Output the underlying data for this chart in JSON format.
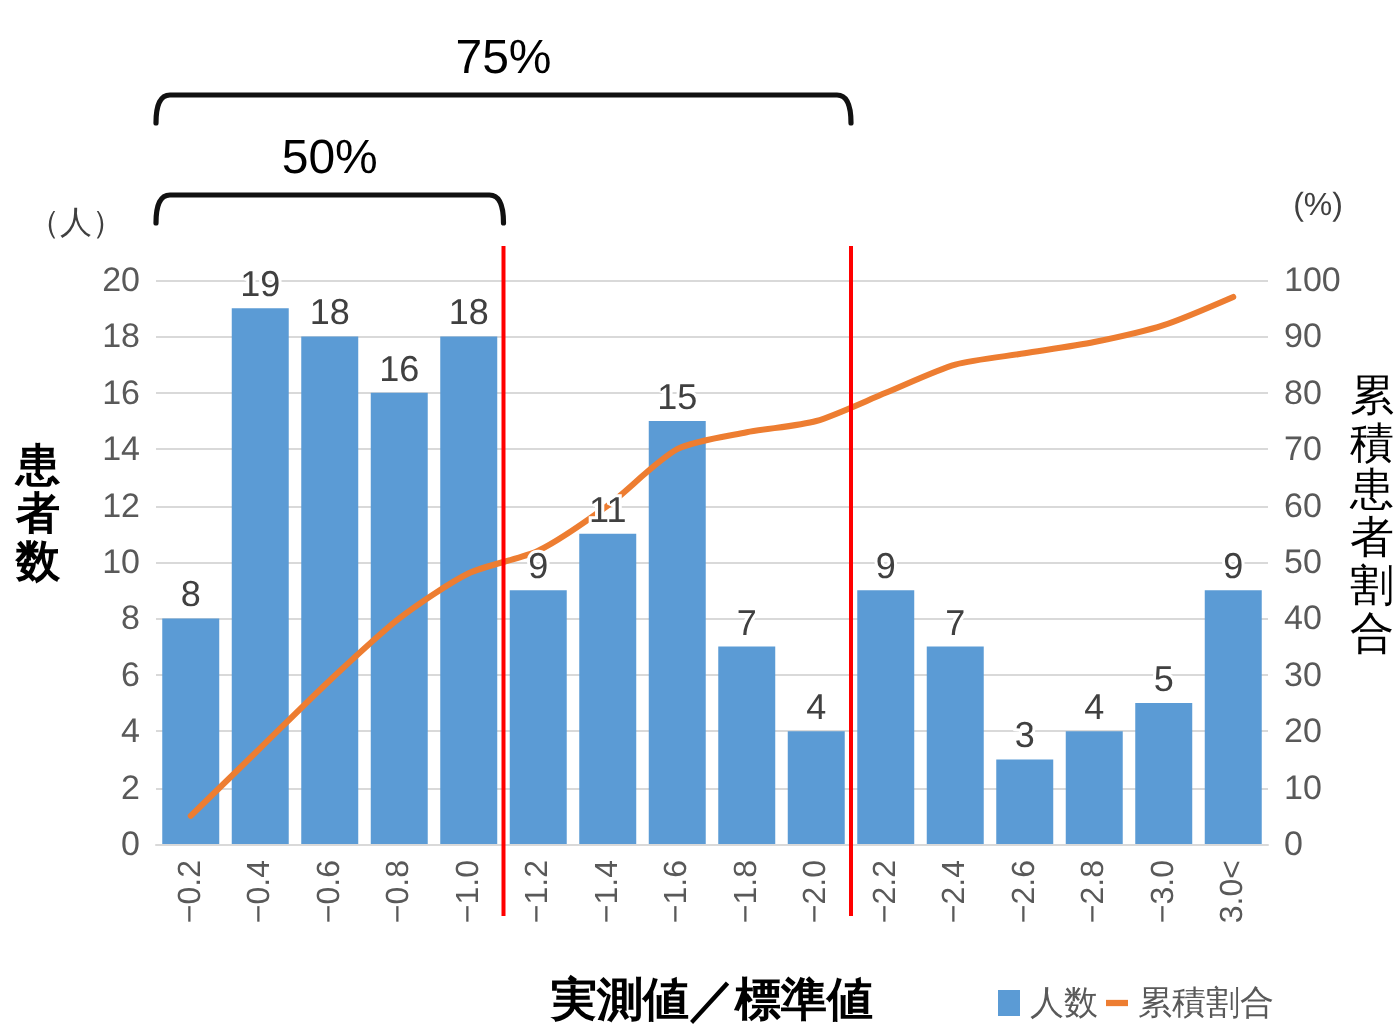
{
  "chart_data": {
    "type": "bar",
    "xlabel": "実測値／標準値",
    "ylabel": "患者数",
    "y2label": "累積患者割合",
    "categories": [
      "−0.2",
      "−0.4",
      "−0.6",
      "−0.8",
      "−1.0",
      "−1.2",
      "−1.4",
      "−1.6",
      "−1.8",
      "−2.0",
      "−2.2",
      "−2.4",
      "−2.6",
      "−2.8",
      "−3.0",
      "3.0<"
    ],
    "series": [
      {
        "name": "人数",
        "color": "#5b9bd5",
        "values": [
          8,
          19,
          18,
          16,
          18,
          9,
          11,
          15,
          7,
          4,
          9,
          7,
          3,
          4,
          5,
          9
        ],
        "value_labels": [
          "8",
          "19",
          "18",
          "16",
          "18",
          "9",
          "11",
          "15",
          "7",
          "4",
          "9",
          "7",
          "3",
          "4",
          "5",
          "9"
        ]
      },
      {
        "name": "累積割合",
        "type": "line",
        "axis": "y2",
        "color": "#ed7d31",
        "values": [
          5,
          17,
          29,
          40,
          48,
          52,
          60,
          70,
          73,
          75,
          80,
          85,
          87,
          89,
          92,
          97
        ]
      }
    ],
    "ylim": [
      0,
      20
    ],
    "yticks": [
      0,
      2,
      4,
      6,
      8,
      10,
      12,
      14,
      16,
      18,
      20
    ],
    "y2lim": [
      0,
      100
    ],
    "y2ticks": [
      0,
      10,
      20,
      30,
      40,
      50,
      60,
      70,
      80,
      90,
      100
    ],
    "grid": "y",
    "legend": "bottom right",
    "annotations": [
      "（人）",
      "(%)",
      "50%",
      "75%"
    ]
  }
}
